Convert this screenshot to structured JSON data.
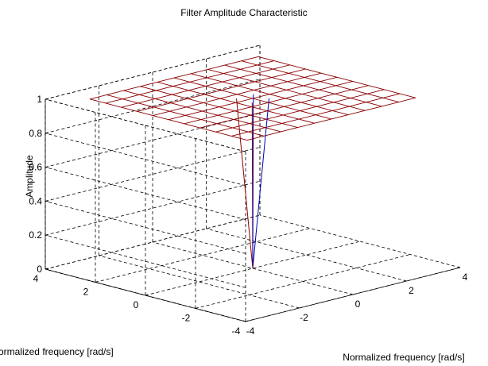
{
  "chart_data": {
    "type": "surface",
    "title": "Filter Amplitude Characteristic",
    "xlabel": "Normalized frequency [rad/s]",
    "ylabel": "Normalized frequency [rad/s]",
    "zlabel": "Amplitude",
    "x_ticks": [
      "-4",
      "-2",
      "0",
      "2",
      "4"
    ],
    "y_ticks": [
      "-4",
      "-2",
      "0",
      "2",
      "4"
    ],
    "z_ticks": [
      "0",
      "0.2",
      "0.4",
      "0.6",
      "0.8",
      "1"
    ],
    "xlim": [
      -4,
      4
    ],
    "ylim": [
      -4,
      4
    ],
    "zlim": [
      0,
      1
    ],
    "grid": true,
    "x_range": [
      -3.14,
      3.14
    ],
    "y_range": [
      -3.14,
      3.14
    ],
    "mesh_size": [
      11,
      11
    ],
    "plateau_value": 1,
    "notch": {
      "x": 0,
      "y": 0,
      "value": 0
    },
    "colors": {
      "mesh": "#8b0000",
      "notch_line": "#0000b0",
      "axes": "#000000"
    }
  }
}
